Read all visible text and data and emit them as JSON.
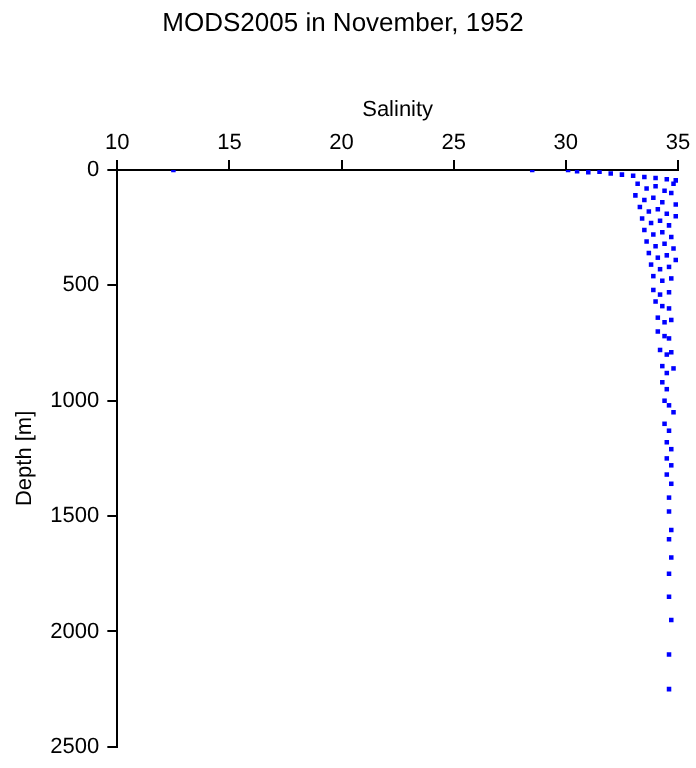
{
  "chart_data": {
    "type": "scatter",
    "title": "MODS2005 in November, 1952",
    "xlabel": "Salinity",
    "ylabel": "Depth [m]",
    "xlim": [
      10,
      35
    ],
    "xticks": [
      10,
      15,
      20,
      25,
      30,
      35
    ],
    "ylim": [
      2500,
      0
    ],
    "yticks": [
      0,
      500,
      1000,
      1500,
      2000,
      2500
    ],
    "grid": false,
    "legend": false,
    "marker": "square",
    "series": [
      {
        "color": "#0000ff",
        "x": [
          12.5,
          28.5,
          30.1,
          30.5,
          31,
          31.5,
          32,
          32.5,
          33,
          33.5,
          34,
          34.5,
          34.9,
          33.2,
          33.6,
          34,
          34.4,
          34.8,
          33.1,
          33.5,
          33.9,
          34.3,
          34.7,
          33.3,
          33.7,
          34.1,
          34.5,
          34.9,
          33.4,
          33.8,
          34.2,
          34.6,
          34.9,
          33.5,
          33.9,
          34.3,
          34.7,
          33.6,
          34,
          34.4,
          34.8,
          33.7,
          34.1,
          34.5,
          34.9,
          33.8,
          34.2,
          34.6,
          33.9,
          34.3,
          34.7,
          33.9,
          34.2,
          34.6,
          34,
          34.3,
          34.6,
          34.1,
          34.4,
          34.7,
          34.1,
          34.4,
          34.6,
          34.2,
          34.5,
          34.7,
          34.3,
          34.5,
          34.8,
          34.3,
          34.5,
          34.4,
          34.6,
          34.8,
          34.4,
          34.6,
          34.5,
          34.7,
          34.5,
          34.7,
          34.5,
          34.7,
          34.6,
          34.6,
          34.7,
          34.6,
          34.7,
          34.6,
          34.6,
          34.7,
          34.6,
          34.6
        ],
        "values": [
          0,
          0,
          0,
          5,
          10,
          8,
          15,
          20,
          25,
          30,
          35,
          40,
          45,
          60,
          80,
          70,
          90,
          60,
          110,
          130,
          120,
          140,
          100,
          160,
          180,
          170,
          190,
          150,
          210,
          230,
          220,
          240,
          200,
          260,
          280,
          270,
          290,
          310,
          330,
          320,
          340,
          360,
          380,
          370,
          390,
          410,
          430,
          420,
          460,
          480,
          470,
          520,
          540,
          530,
          570,
          590,
          600,
          640,
          660,
          650,
          700,
          720,
          730,
          780,
          800,
          790,
          850,
          880,
          860,
          920,
          950,
          1000,
          1020,
          1050,
          1100,
          1130,
          1180,
          1210,
          1250,
          1280,
          1320,
          1360,
          1420,
          1480,
          1560,
          1600,
          1680,
          1750,
          1850,
          1950,
          2100,
          2250
        ]
      }
    ]
  }
}
